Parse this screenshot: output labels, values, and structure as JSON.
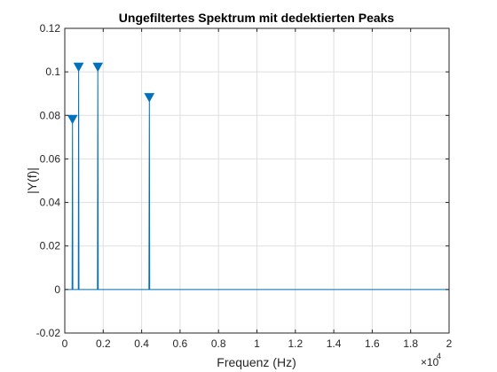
{
  "chart_data": {
    "type": "stem",
    "title": "Ungefiltertes Spektrum mit dedektierten Peaks",
    "xlabel": "Frequenz (Hz)",
    "ylabel": "|Y(f)|",
    "x_exponent_label": "×10",
    "x_exponent_power": "4",
    "xlim": [
      0,
      20000
    ],
    "ylim": [
      -0.02,
      0.12
    ],
    "x_ticks": [
      0,
      2000,
      4000,
      6000,
      8000,
      10000,
      12000,
      14000,
      16000,
      18000,
      20000
    ],
    "x_tick_labels": [
      "0",
      "0.2",
      "0.4",
      "0.6",
      "0.8",
      "1",
      "1.2",
      "1.4",
      "1.6",
      "1.8",
      "2"
    ],
    "y_ticks": [
      -0.02,
      0,
      0.02,
      0.04,
      0.06,
      0.08,
      0.1,
      0.12
    ],
    "y_tick_labels": [
      "-0.02",
      "0",
      "0.02",
      "0.04",
      "0.06",
      "0.08",
      "0.1",
      "0.12"
    ],
    "grid": true,
    "line_color": "#0072BD",
    "spectrum": {
      "x": [
        0,
        380,
        400,
        420,
        700,
        720,
        740,
        1700,
        1720,
        1740,
        4380,
        4400,
        4420,
        20000
      ],
      "y": [
        0,
        0,
        0.078,
        0,
        0,
        0.102,
        0,
        0,
        0.102,
        0,
        0,
        0.088,
        0,
        0
      ]
    },
    "peaks": {
      "x": [
        400,
        720,
        1720,
        4400
      ],
      "y": [
        0.078,
        0.102,
        0.102,
        0.088
      ]
    }
  }
}
